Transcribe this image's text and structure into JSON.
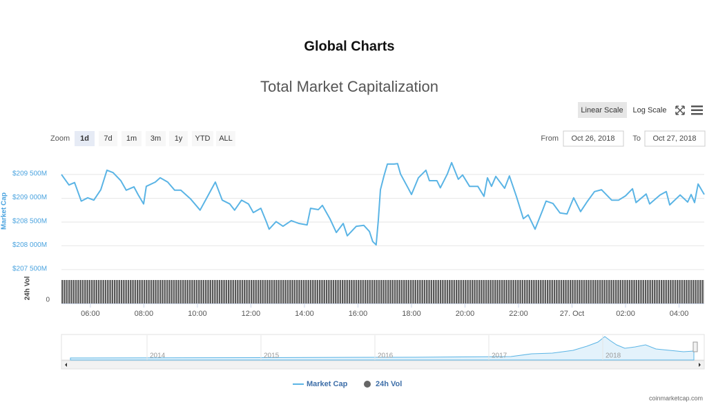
{
  "page_title": "Global Charts",
  "chart_data": {
    "type": "line",
    "title": "Total Market Capitalization",
    "scale_buttons": [
      "Linear Scale",
      "Log Scale"
    ],
    "zoom_label": "Zoom",
    "zoom_options": [
      "1d",
      "7d",
      "1m",
      "3m",
      "1y",
      "YTD",
      "ALL"
    ],
    "from_label": "From",
    "from": "Oct 26, 2018",
    "to_label": "To",
    "to": "Oct 27, 2018",
    "y_label": "Market Cap",
    "y2_label": "24h Vol",
    "y2ticks": [
      0
    ],
    "xlim": [
      4.92,
      28.94
    ],
    "xticks": [
      {
        "value": 6,
        "label": "06:00"
      },
      {
        "value": 8,
        "label": "08:00"
      },
      {
        "value": 10,
        "label": "10:00"
      },
      {
        "value": 12,
        "label": "12:00"
      },
      {
        "value": 14,
        "label": "14:00"
      },
      {
        "value": 16,
        "label": "16:00"
      },
      {
        "value": 18,
        "label": "18:00"
      },
      {
        "value": 20,
        "label": "20:00"
      },
      {
        "value": 22,
        "label": "22:00"
      },
      {
        "value": 24,
        "label": "27. Oct"
      },
      {
        "value": 26,
        "label": "02:00"
      },
      {
        "value": 28,
        "label": "04:00"
      }
    ],
    "ylim": [
      207440,
      209950
    ],
    "yticks": [
      {
        "value": 207500,
        "label": "$207 500M"
      },
      {
        "value": 208000,
        "label": "$208 000M"
      },
      {
        "value": 208500,
        "label": "$208 500M"
      },
      {
        "value": 209000,
        "label": "$209 000M"
      },
      {
        "value": 209500,
        "label": "$209 500M"
      }
    ],
    "grid": true,
    "x": [
      4.92,
      5.2,
      5.41,
      5.66,
      5.9,
      6.13,
      6.39,
      6.62,
      6.85,
      7.14,
      7.34,
      7.63,
      7.78,
      7.99,
      8.09,
      8.43,
      8.61,
      8.89,
      9.15,
      9.38,
      9.74,
      10.1,
      10.36,
      10.67,
      10.93,
      11.21,
      11.39,
      11.65,
      11.91,
      12.09,
      12.37,
      12.58,
      12.68,
      12.94,
      13.2,
      13.51,
      13.79,
      14.1,
      14.23,
      14.52,
      14.67,
      14.95,
      15.19,
      15.45,
      15.6,
      15.94,
      16.22,
      16.43,
      16.55,
      16.68,
      16.76,
      16.84,
      16.97,
      17.1,
      17.35,
      17.48,
      17.59,
      17.87,
      18.0,
      18.26,
      18.54,
      18.67,
      18.95,
      19.08,
      19.34,
      19.5,
      19.75,
      19.91,
      20.17,
      20.48,
      20.71,
      20.84,
      20.99,
      21.15,
      21.48,
      21.66,
      21.92,
      22.18,
      22.36,
      22.62,
      22.9,
      23.03,
      23.29,
      23.55,
      23.81,
      24.06,
      24.32,
      24.58,
      24.84,
      25.1,
      25.48,
      25.74,
      26.0,
      26.26,
      26.39,
      26.77,
      26.9,
      27.29,
      27.52,
      27.65,
      28.04,
      28.32,
      28.45,
      28.58,
      28.71,
      28.94
    ],
    "series": [
      {
        "name": "Market Cap",
        "color": "#5ab4e5",
        "values": [
          209500,
          209280,
          209330,
          208940,
          209010,
          208960,
          209180,
          209590,
          209540,
          209370,
          209170,
          209240,
          209080,
          208880,
          209250,
          209340,
          209430,
          209340,
          209170,
          209170,
          208990,
          208750,
          209020,
          209340,
          208960,
          208880,
          208750,
          208960,
          208880,
          208700,
          208790,
          208500,
          208350,
          208510,
          208410,
          208530,
          208470,
          208440,
          208790,
          208760,
          208850,
          208570,
          208280,
          208470,
          208210,
          208410,
          208430,
          208300,
          208090,
          208020,
          208530,
          209180,
          209470,
          209720,
          209720,
          209730,
          209510,
          209220,
          209080,
          209430,
          209590,
          209370,
          209370,
          209220,
          209510,
          209750,
          209400,
          209490,
          209250,
          209250,
          209040,
          209430,
          209250,
          209460,
          209210,
          209470,
          209040,
          208570,
          208650,
          208350,
          208750,
          208940,
          208890,
          208690,
          208670,
          209010,
          208720,
          208940,
          209140,
          209180,
          208960,
          208960,
          209050,
          209200,
          208910,
          209090,
          208880,
          209070,
          209140,
          208860,
          209070,
          208920,
          209080,
          208910,
          209300,
          209080
        ]
      }
    ],
    "volume": {
      "name": "24h Vol",
      "color": "#666666"
    },
    "navigator_labels": [
      "2014",
      "2015",
      "2016",
      "2017",
      "2018"
    ],
    "credit": "coinmarketcap.com"
  }
}
